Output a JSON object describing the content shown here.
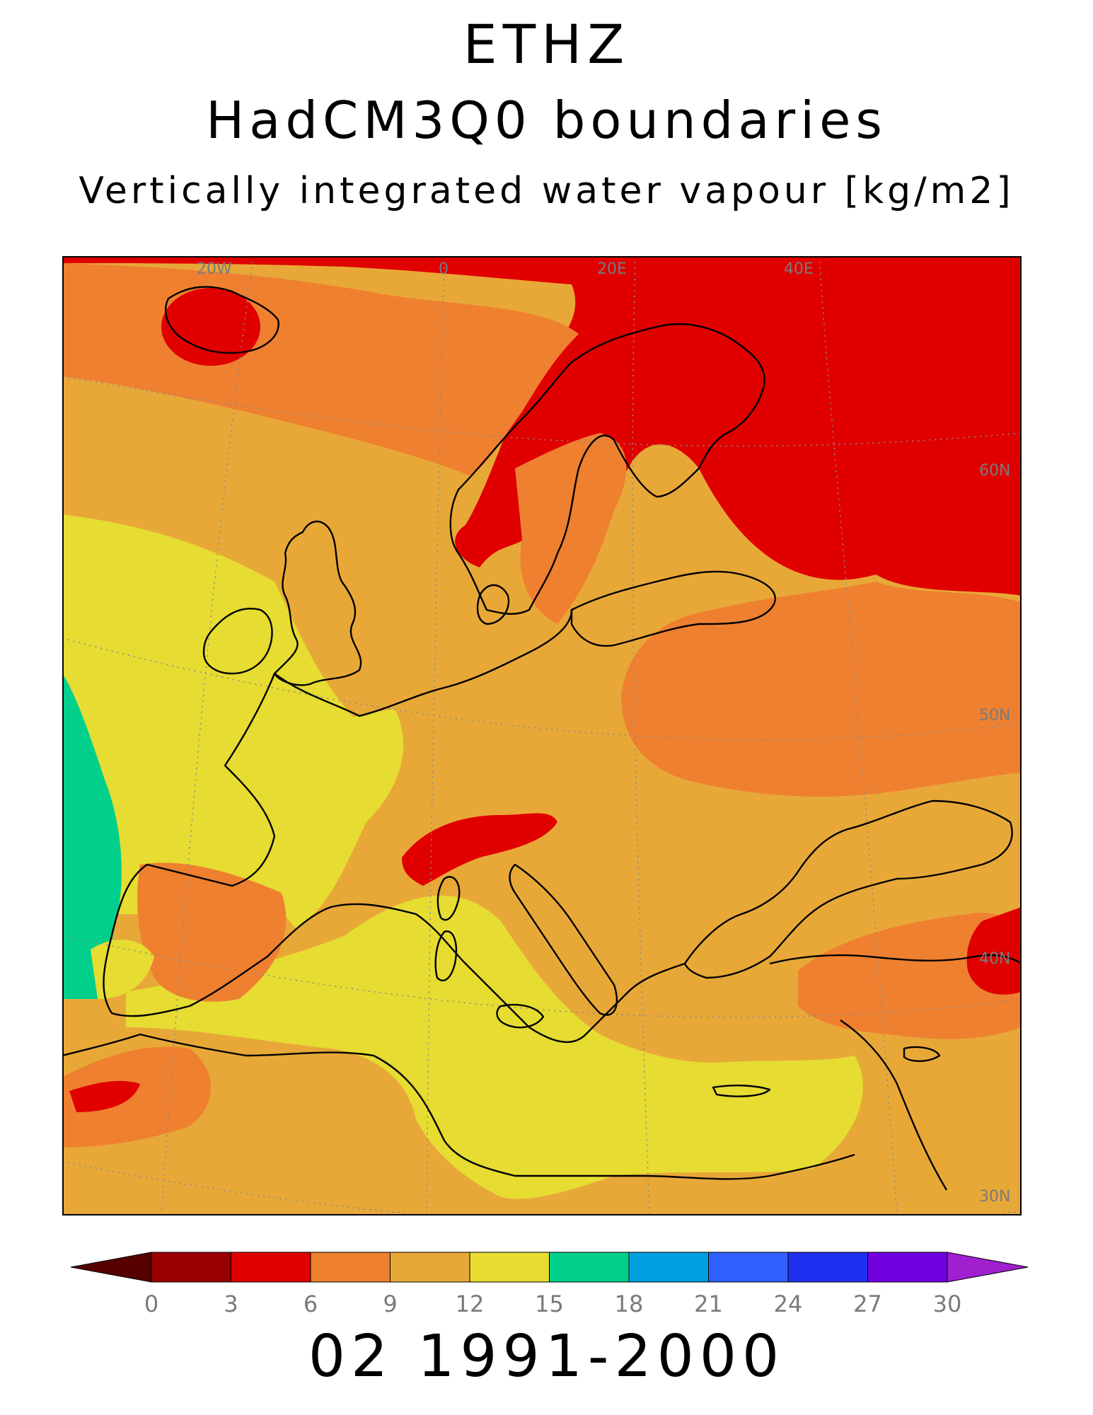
{
  "header": {
    "line1": "ETHZ",
    "line2": "HadCM3Q0 boundaries",
    "line3": "Vertically integrated water vapour [kg/m2]"
  },
  "map": {
    "lon_labels": [
      "20W",
      "0",
      "20E",
      "40E"
    ],
    "lat_labels": [
      "60N",
      "50N",
      "40N",
      "30N"
    ],
    "colors": {
      "dark_red": "#9a0000",
      "red": "#e00000",
      "orange": "#ee8030",
      "light_orange": "#e8a838",
      "yellow": "#e6dc32",
      "teal": "#00d08c",
      "coast": "#000000",
      "grid": "#8a8a8a"
    }
  },
  "colorbar": {
    "tick_labels": [
      "0",
      "3",
      "6",
      "9",
      "12",
      "15",
      "18",
      "21",
      "24",
      "27",
      "30"
    ],
    "colors": [
      "#560000",
      "#9a0000",
      "#e00000",
      "#ee8030",
      "#e8a838",
      "#e6dc32",
      "#00d08c",
      "#00a0e0",
      "#3060ff",
      "#2030f0",
      "#7000e0",
      "#a020d0"
    ]
  },
  "footer": "02 1991-2000"
}
